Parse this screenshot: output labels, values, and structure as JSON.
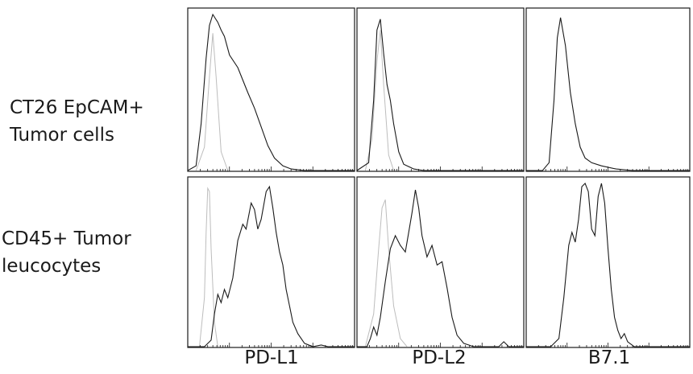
{
  "chart_data": {
    "type": "histogram-grid",
    "row_labels": [
      "CT26 EpCAM+\nTumor cells",
      "CD45+ Tumor\nleucocytes"
    ],
    "column_labels": [
      "PD-L1",
      "PD-L2",
      "B7.1"
    ],
    "x_scale": "log",
    "axis_ranges": {
      "x": [
        0,
        1
      ],
      "y": [
        0,
        1
      ]
    },
    "series_colors": {
      "isotype": "#bdbdbd",
      "stain": "#1a1a1a"
    },
    "panels": [
      {
        "row": 0,
        "col": 0,
        "isotype": [
          [
            0.05,
            0.0
          ],
          [
            0.1,
            0.15
          ],
          [
            0.13,
            0.6
          ],
          [
            0.15,
            0.88
          ],
          [
            0.17,
            0.6
          ],
          [
            0.2,
            0.12
          ],
          [
            0.24,
            0.0
          ]
        ],
        "stain": [
          [
            0.0,
            0.0
          ],
          [
            0.05,
            0.03
          ],
          [
            0.08,
            0.3
          ],
          [
            0.11,
            0.72
          ],
          [
            0.13,
            0.93
          ],
          [
            0.15,
            1.0
          ],
          [
            0.18,
            0.95
          ],
          [
            0.2,
            0.9
          ],
          [
            0.22,
            0.86
          ],
          [
            0.25,
            0.74
          ],
          [
            0.3,
            0.66
          ],
          [
            0.33,
            0.58
          ],
          [
            0.36,
            0.5
          ],
          [
            0.4,
            0.4
          ],
          [
            0.44,
            0.28
          ],
          [
            0.48,
            0.16
          ],
          [
            0.52,
            0.08
          ],
          [
            0.57,
            0.03
          ],
          [
            0.62,
            0.01
          ],
          [
            0.7,
            0.0
          ],
          [
            1.0,
            0.0
          ]
        ]
      },
      {
        "row": 0,
        "col": 1,
        "isotype": [
          [
            0.05,
            0.0
          ],
          [
            0.09,
            0.2
          ],
          [
            0.12,
            0.7
          ],
          [
            0.14,
            0.9
          ],
          [
            0.16,
            0.55
          ],
          [
            0.19,
            0.1
          ],
          [
            0.22,
            0.0
          ]
        ],
        "stain": [
          [
            0.0,
            0.0
          ],
          [
            0.07,
            0.05
          ],
          [
            0.1,
            0.45
          ],
          [
            0.12,
            0.9
          ],
          [
            0.14,
            0.97
          ],
          [
            0.16,
            0.75
          ],
          [
            0.18,
            0.55
          ],
          [
            0.2,
            0.45
          ],
          [
            0.22,
            0.3
          ],
          [
            0.25,
            0.12
          ],
          [
            0.28,
            0.04
          ],
          [
            0.34,
            0.01
          ],
          [
            0.4,
            0.0
          ],
          [
            1.0,
            0.0
          ]
        ]
      },
      {
        "row": 0,
        "col": 2,
        "isotype": [],
        "stain": [
          [
            0.0,
            0.0
          ],
          [
            0.1,
            0.0
          ],
          [
            0.14,
            0.05
          ],
          [
            0.17,
            0.45
          ],
          [
            0.19,
            0.85
          ],
          [
            0.21,
            0.98
          ],
          [
            0.24,
            0.8
          ],
          [
            0.27,
            0.5
          ],
          [
            0.3,
            0.3
          ],
          [
            0.33,
            0.15
          ],
          [
            0.36,
            0.08
          ],
          [
            0.4,
            0.05
          ],
          [
            0.46,
            0.03
          ],
          [
            0.55,
            0.01
          ],
          [
            0.65,
            0.0
          ],
          [
            1.0,
            0.0
          ]
        ]
      },
      {
        "row": 1,
        "col": 0,
        "isotype": [
          [
            0.07,
            0.0
          ],
          [
            0.1,
            0.3
          ],
          [
            0.11,
            0.7
          ],
          [
            0.12,
            0.97
          ],
          [
            0.13,
            0.95
          ],
          [
            0.14,
            0.6
          ],
          [
            0.16,
            0.15
          ],
          [
            0.18,
            0.0
          ]
        ],
        "stain": [
          [
            0.0,
            0.0
          ],
          [
            0.1,
            0.0
          ],
          [
            0.14,
            0.04
          ],
          [
            0.16,
            0.2
          ],
          [
            0.18,
            0.32
          ],
          [
            0.2,
            0.27
          ],
          [
            0.22,
            0.35
          ],
          [
            0.24,
            0.3
          ],
          [
            0.27,
            0.42
          ],
          [
            0.3,
            0.65
          ],
          [
            0.33,
            0.75
          ],
          [
            0.35,
            0.72
          ],
          [
            0.38,
            0.88
          ],
          [
            0.4,
            0.84
          ],
          [
            0.42,
            0.72
          ],
          [
            0.44,
            0.78
          ],
          [
            0.47,
            0.95
          ],
          [
            0.49,
            0.98
          ],
          [
            0.51,
            0.85
          ],
          [
            0.53,
            0.7
          ],
          [
            0.55,
            0.58
          ],
          [
            0.57,
            0.5
          ],
          [
            0.59,
            0.35
          ],
          [
            0.61,
            0.25
          ],
          [
            0.63,
            0.15
          ],
          [
            0.66,
            0.08
          ],
          [
            0.7,
            0.02
          ],
          [
            0.75,
            0.0
          ],
          [
            0.8,
            0.01
          ],
          [
            0.84,
            0.0
          ],
          [
            1.0,
            0.0
          ]
        ]
      },
      {
        "row": 1,
        "col": 1,
        "isotype": [
          [
            0.05,
            0.0
          ],
          [
            0.1,
            0.2
          ],
          [
            0.13,
            0.6
          ],
          [
            0.15,
            0.85
          ],
          [
            0.17,
            0.9
          ],
          [
            0.19,
            0.6
          ],
          [
            0.22,
            0.25
          ],
          [
            0.26,
            0.05
          ],
          [
            0.3,
            0.0
          ]
        ],
        "stain": [
          [
            0.0,
            0.0
          ],
          [
            0.06,
            0.0
          ],
          [
            0.08,
            0.05
          ],
          [
            0.1,
            0.12
          ],
          [
            0.12,
            0.07
          ],
          [
            0.14,
            0.18
          ],
          [
            0.17,
            0.4
          ],
          [
            0.2,
            0.6
          ],
          [
            0.23,
            0.68
          ],
          [
            0.26,
            0.62
          ],
          [
            0.29,
            0.58
          ],
          [
            0.31,
            0.7
          ],
          [
            0.33,
            0.82
          ],
          [
            0.35,
            0.96
          ],
          [
            0.37,
            0.85
          ],
          [
            0.39,
            0.68
          ],
          [
            0.42,
            0.55
          ],
          [
            0.45,
            0.62
          ],
          [
            0.48,
            0.5
          ],
          [
            0.51,
            0.52
          ],
          [
            0.54,
            0.36
          ],
          [
            0.57,
            0.18
          ],
          [
            0.6,
            0.07
          ],
          [
            0.64,
            0.02
          ],
          [
            0.7,
            0.0
          ],
          [
            0.85,
            0.0
          ],
          [
            0.88,
            0.03
          ],
          [
            0.91,
            0.0
          ],
          [
            1.0,
            0.0
          ]
        ]
      },
      {
        "row": 1,
        "col": 2,
        "isotype": [],
        "stain": [
          [
            0.0,
            0.0
          ],
          [
            0.15,
            0.0
          ],
          [
            0.2,
            0.05
          ],
          [
            0.23,
            0.3
          ],
          [
            0.26,
            0.62
          ],
          [
            0.28,
            0.7
          ],
          [
            0.3,
            0.64
          ],
          [
            0.32,
            0.78
          ],
          [
            0.34,
            0.98
          ],
          [
            0.36,
            1.0
          ],
          [
            0.38,
            0.95
          ],
          [
            0.4,
            0.72
          ],
          [
            0.42,
            0.68
          ],
          [
            0.44,
            0.92
          ],
          [
            0.46,
            1.0
          ],
          [
            0.48,
            0.88
          ],
          [
            0.5,
            0.6
          ],
          [
            0.52,
            0.35
          ],
          [
            0.54,
            0.18
          ],
          [
            0.56,
            0.1
          ],
          [
            0.58,
            0.05
          ],
          [
            0.6,
            0.08
          ],
          [
            0.62,
            0.03
          ],
          [
            0.66,
            0.0
          ],
          [
            1.0,
            0.0
          ]
        ]
      }
    ]
  }
}
